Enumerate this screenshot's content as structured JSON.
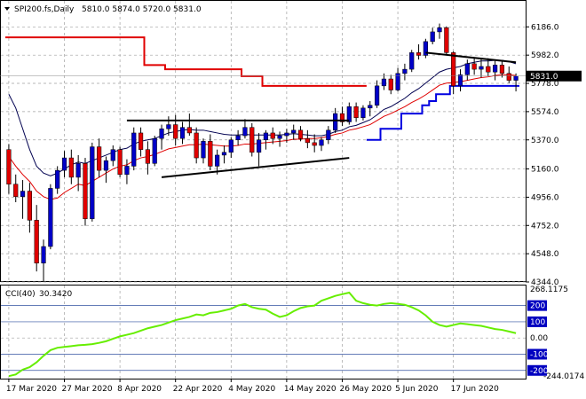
{
  "header": {
    "symbol": "SPI200.fs,Daily",
    "ohlc": "5810.0 5874.0 5720.0 5831.0"
  },
  "colors": {
    "bull": "#0000c8",
    "bear": "#e00000",
    "ma_red": "#e00000",
    "ma_navy": "#000050",
    "stop_red": "#e00000",
    "stop_blue": "#0000e0",
    "trend": "#000000",
    "cci": "#66ee00",
    "price_box": "#000000",
    "cci_level_box": "#0000c0"
  },
  "chart_data": [
    {
      "type": "candlestick",
      "ylim": [
        4344.0,
        6252.0
      ],
      "y_ticks": [
        6186.0,
        5982.0,
        5778.0,
        5574.0,
        5370.0,
        5160.0,
        4956.0,
        4752.0,
        4548.0,
        4344.0
      ],
      "y_tick_labels": [
        "6186.0",
        "5982.0",
        "5778.0",
        "5574.0",
        "5370.0",
        "5160.0",
        "4956.0",
        "4752.0",
        "4548.0",
        "4344.0"
      ],
      "x_tick_labels": [
        "17 Mar 2020",
        "27 Mar 2020",
        "8 Apr 2020",
        "22 Apr 2020",
        "4 May 2020",
        "14 May 2020",
        "26 May 2020",
        "5 Jun 2020",
        "17 Jun 2020"
      ],
      "last_price": 5831.0,
      "last_price_label": "5831.0",
      "candles": [
        [
          5300,
          5340,
          4980,
          5050
        ],
        [
          5050,
          5120,
          4920,
          4960
        ],
        [
          4960,
          5080,
          4800,
          5000
        ],
        [
          5000,
          5060,
          4700,
          4790
        ],
        [
          4790,
          4900,
          4420,
          4480
        ],
        [
          4480,
          4650,
          4350,
          4600
        ],
        [
          4600,
          5050,
          4580,
          5020
        ],
        [
          5020,
          5180,
          4980,
          5150
        ],
        [
          5150,
          5290,
          5100,
          5240
        ],
        [
          5240,
          5300,
          5050,
          5100
        ],
        [
          5100,
          5260,
          5000,
          5200
        ],
        [
          5200,
          5240,
          4750,
          4800
        ],
        [
          4800,
          5350,
          4780,
          5320
        ],
        [
          5320,
          5380,
          5100,
          5150
        ],
        [
          5150,
          5250,
          5060,
          5220
        ],
        [
          5220,
          5330,
          5180,
          5300
        ],
        [
          5300,
          5320,
          5100,
          5120
        ],
        [
          5120,
          5230,
          5050,
          5180
        ],
        [
          5180,
          5460,
          5150,
          5420
        ],
        [
          5420,
          5460,
          5250,
          5300
        ],
        [
          5300,
          5360,
          5120,
          5200
        ],
        [
          5200,
          5400,
          5180,
          5380
        ],
        [
          5380,
          5480,
          5300,
          5450
        ],
        [
          5450,
          5540,
          5400,
          5480
        ],
        [
          5480,
          5550,
          5330,
          5380
        ],
        [
          5380,
          5500,
          5340,
          5460
        ],
        [
          5460,
          5560,
          5400,
          5420
        ],
        [
          5420,
          5460,
          5200,
          5240
        ],
        [
          5240,
          5380,
          5200,
          5360
        ],
        [
          5360,
          5410,
          5150,
          5180
        ],
        [
          5180,
          5300,
          5120,
          5260
        ],
        [
          5260,
          5330,
          5200,
          5280
        ],
        [
          5280,
          5390,
          5240,
          5370
        ],
        [
          5370,
          5440,
          5330,
          5400
        ],
        [
          5400,
          5520,
          5380,
          5460
        ],
        [
          5460,
          5490,
          5250,
          5280
        ],
        [
          5280,
          5420,
          5180,
          5370
        ],
        [
          5370,
          5440,
          5300,
          5420
        ],
        [
          5420,
          5460,
          5340,
          5380
        ],
        [
          5380,
          5430,
          5320,
          5400
        ],
        [
          5400,
          5450,
          5350,
          5420
        ],
        [
          5420,
          5480,
          5370,
          5440
        ],
        [
          5440,
          5470,
          5360,
          5380
        ],
        [
          5380,
          5440,
          5310,
          5350
        ],
        [
          5350,
          5410,
          5280,
          5330
        ],
        [
          5330,
          5390,
          5290,
          5370
        ],
        [
          5370,
          5470,
          5340,
          5440
        ],
        [
          5440,
          5600,
          5420,
          5560
        ],
        [
          5560,
          5610,
          5470,
          5500
        ],
        [
          5500,
          5640,
          5480,
          5610
        ],
        [
          5610,
          5640,
          5500,
          5530
        ],
        [
          5530,
          5620,
          5510,
          5600
        ],
        [
          5600,
          5650,
          5540,
          5620
        ],
        [
          5620,
          5800,
          5600,
          5760
        ],
        [
          5760,
          5850,
          5730,
          5810
        ],
        [
          5810,
          5840,
          5700,
          5730
        ],
        [
          5730,
          5890,
          5720,
          5850
        ],
        [
          5850,
          5920,
          5800,
          5880
        ],
        [
          5880,
          6020,
          5860,
          6000
        ],
        [
          6000,
          6060,
          5950,
          5980
        ],
        [
          5980,
          6100,
          5960,
          6080
        ],
        [
          6080,
          6180,
          6060,
          6150
        ],
        [
          6150,
          6210,
          6100,
          6180
        ],
        [
          6180,
          6190,
          5980,
          6000
        ],
        [
          6000,
          6010,
          5700,
          5760
        ],
        [
          5760,
          5880,
          5720,
          5840
        ],
        [
          5840,
          5950,
          5800,
          5920
        ],
        [
          5920,
          5960,
          5840,
          5880
        ],
        [
          5880,
          5960,
          5820,
          5900
        ],
        [
          5900,
          5960,
          5830,
          5860
        ],
        [
          5860,
          5940,
          5800,
          5910
        ],
        [
          5910,
          5940,
          5820,
          5850
        ],
        [
          5850,
          5900,
          5780,
          5800
        ],
        [
          5800,
          5850,
          5720,
          5831
        ]
      ],
      "moving_average_red": [
        5250,
        5180,
        5120,
        5070,
        5000,
        4960,
        4940,
        4950,
        4990,
        5020,
        5050,
        5040,
        5070,
        5100,
        5130,
        5160,
        5180,
        5190,
        5220,
        5240,
        5250,
        5265,
        5285,
        5305,
        5315,
        5325,
        5335,
        5335,
        5340,
        5335,
        5330,
        5325,
        5325,
        5330,
        5340,
        5340,
        5345,
        5350,
        5355,
        5360,
        5365,
        5375,
        5375,
        5380,
        5380,
        5385,
        5395,
        5410,
        5420,
        5440,
        5450,
        5465,
        5480,
        5510,
        5540,
        5560,
        5585,
        5610,
        5640,
        5665,
        5695,
        5730,
        5765,
        5780,
        5785,
        5790,
        5800,
        5810,
        5820,
        5825,
        5835,
        5840,
        5840,
        5835
      ],
      "moving_average_navy": [
        5700,
        5600,
        5450,
        5300,
        5180,
        5130,
        5110,
        5130,
        5160,
        5190,
        5210,
        5200,
        5220,
        5240,
        5260,
        5280,
        5300,
        5310,
        5340,
        5360,
        5370,
        5380,
        5400,
        5420,
        5430,
        5440,
        5445,
        5440,
        5440,
        5430,
        5420,
        5410,
        5405,
        5405,
        5410,
        5405,
        5405,
        5405,
        5405,
        5405,
        5410,
        5415,
        5410,
        5405,
        5400,
        5400,
        5410,
        5430,
        5440,
        5465,
        5475,
        5495,
        5515,
        5550,
        5590,
        5610,
        5640,
        5670,
        5710,
        5740,
        5780,
        5820,
        5860,
        5880,
        5890,
        5900,
        5920,
        5930,
        5940,
        5940,
        5945,
        5945,
        5935,
        5920
      ],
      "stop_red": [
        6110,
        6110,
        6110,
        6110,
        6110,
        6110,
        6110,
        6110,
        6110,
        6110,
        6110,
        6110,
        6110,
        6110,
        6110,
        6110,
        6110,
        6110,
        6110,
        6110,
        5910,
        5910,
        5910,
        5880,
        5880,
        5880,
        5880,
        5880,
        5880,
        5880,
        5880,
        5880,
        5880,
        5880,
        5830,
        5830,
        5830,
        5760,
        5760,
        5760,
        5760,
        5760,
        5760,
        5760,
        5760,
        5760,
        5760,
        5760,
        5760,
        5760,
        5760,
        5760
      ],
      "stop_blue": [
        null,
        null,
        null,
        null,
        null,
        null,
        null,
        null,
        null,
        null,
        null,
        null,
        null,
        null,
        null,
        null,
        null,
        null,
        null,
        null,
        null,
        null,
        null,
        null,
        null,
        null,
        null,
        null,
        null,
        null,
        null,
        null,
        null,
        null,
        null,
        null,
        null,
        null,
        null,
        null,
        null,
        null,
        null,
        null,
        null,
        null,
        null,
        null,
        null,
        null,
        null,
        null,
        5370,
        5370,
        5450,
        5450,
        5450,
        5560,
        5560,
        5560,
        5620,
        5650,
        5700,
        5700,
        5760,
        5760,
        5760,
        5760,
        5760,
        5760,
        5760,
        5760,
        5760,
        5760
      ],
      "trend_lines": [
        {
          "from": [
            17,
            5510
          ],
          "to": [
            49,
            5510
          ]
        },
        {
          "from": [
            22,
            5100
          ],
          "to": [
            49,
            5240
          ]
        },
        {
          "from": [
            60,
            6000
          ],
          "to": [
            73,
            5930
          ]
        }
      ]
    },
    {
      "type": "line",
      "series": [
        {
          "name": "CCI(40)",
          "values": [
            -235,
            -225,
            -195,
            -180,
            -150,
            -110,
            -75,
            -60,
            -55,
            -50,
            -45,
            -42,
            -38,
            -30,
            -20,
            -5,
            10,
            20,
            30,
            45,
            60,
            70,
            80,
            95,
            110,
            120,
            130,
            145,
            140,
            155,
            160,
            170,
            180,
            200,
            210,
            190,
            180,
            175,
            150,
            130,
            140,
            165,
            185,
            195,
            200,
            230,
            245,
            260,
            270,
            280,
            230,
            215,
            205,
            200,
            210,
            215,
            210,
            205,
            190,
            170,
            140,
            100,
            80,
            70,
            80,
            90,
            85,
            80,
            75,
            65,
            55,
            50,
            40,
            30
          ]
        }
      ],
      "ylim": [
        -245,
        280
      ],
      "y_ticks": [
        200,
        100,
        0,
        -100,
        -200
      ],
      "y_tick_labels": [
        "200",
        "100",
        "0.00",
        "-100",
        "-200"
      ],
      "extra_labels": [
        "268.1175",
        "-244.0174"
      ],
      "value_label": "30.3420"
    }
  ]
}
